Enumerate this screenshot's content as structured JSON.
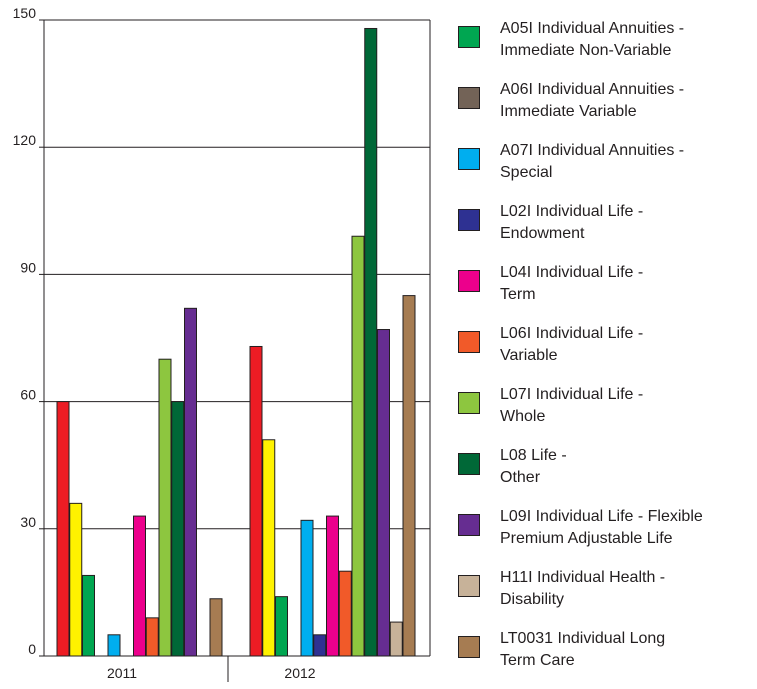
{
  "chart_data": {
    "type": "bar",
    "categories": [
      "2011",
      "2012"
    ],
    "ylim": [
      0,
      150
    ],
    "yticks": [
      0,
      30,
      60,
      90,
      120,
      150
    ],
    "grid": true,
    "legend_position": "right",
    "series": [
      {
        "name": "",
        "color": "#ed1c24",
        "values": [
          60,
          73
        ]
      },
      {
        "name": "",
        "color": "#fff200",
        "values": [
          36,
          51
        ]
      },
      {
        "name": "A05I Individual Annuities - Immediate Non-Variable",
        "color": "#00a651",
        "values": [
          19,
          14
        ]
      },
      {
        "name": "A06I Individual Annuities - Immediate Variable",
        "color": "#736357",
        "values": [
          0,
          0
        ]
      },
      {
        "name": "A07I Individual Annuities - Special",
        "color": "#00aeef",
        "values": [
          5,
          32
        ]
      },
      {
        "name": "L02I Individual Life - Endowment",
        "color": "#2e3192",
        "values": [
          0,
          5
        ]
      },
      {
        "name": "L04I Individual Life - Term",
        "color": "#ec008c",
        "values": [
          33,
          33
        ]
      },
      {
        "name": "L06I Individual Life - Variable",
        "color": "#f15a29",
        "values": [
          9,
          20
        ]
      },
      {
        "name": "L07I Individual Life - Whole",
        "color": "#8dc63f",
        "values": [
          70,
          99
        ]
      },
      {
        "name": "L08 Life - Other",
        "color": "#006837",
        "values": [
          60,
          148
        ]
      },
      {
        "name": "L09I Individual Life - Flexible Premium Adjustable Life",
        "color": "#662d91",
        "values": [
          82,
          77
        ]
      },
      {
        "name": "H11I Individual Health - Disability",
        "color": "#c7b299",
        "values": [
          0,
          8
        ]
      },
      {
        "name": "LT0031 Individual Long Term Care",
        "color": "#a67c52",
        "values": [
          13.5,
          85
        ]
      }
    ]
  },
  "legend": [
    {
      "line1": "A05I Individual Annuities -",
      "line2": "Immediate Non-Variable",
      "color": "#00a651"
    },
    {
      "line1": "A06I Individual Annuities -",
      "line2": "Immediate Variable",
      "color": "#736357"
    },
    {
      "line1": "A07I Individual Annuities -",
      "line2": "Special",
      "color": "#00aeef"
    },
    {
      "line1": "L02I Individual Life -",
      "line2": "Endowment",
      "color": "#2e3192"
    },
    {
      "line1": "L04I Individual Life -",
      "line2": "Term",
      "color": "#ec008c"
    },
    {
      "line1": "L06I Individual Life -",
      "line2": "Variable",
      "color": "#f15a29"
    },
    {
      "line1": "L07I Individual Life -",
      "line2": "Whole",
      "color": "#8dc63f"
    },
    {
      "line1": "L08 Life -",
      "line2": "Other",
      "color": "#006837"
    },
    {
      "line1": "L09I Individual Life - Flexible",
      "line2": "Premium Adjustable Life",
      "color": "#662d91"
    },
    {
      "line1": "H11I Individual Health -",
      "line2": "Disability",
      "color": "#c7b299"
    },
    {
      "line1": "LT0031 Individual Long",
      "line2": "Term Care",
      "color": "#a67c52"
    }
  ]
}
